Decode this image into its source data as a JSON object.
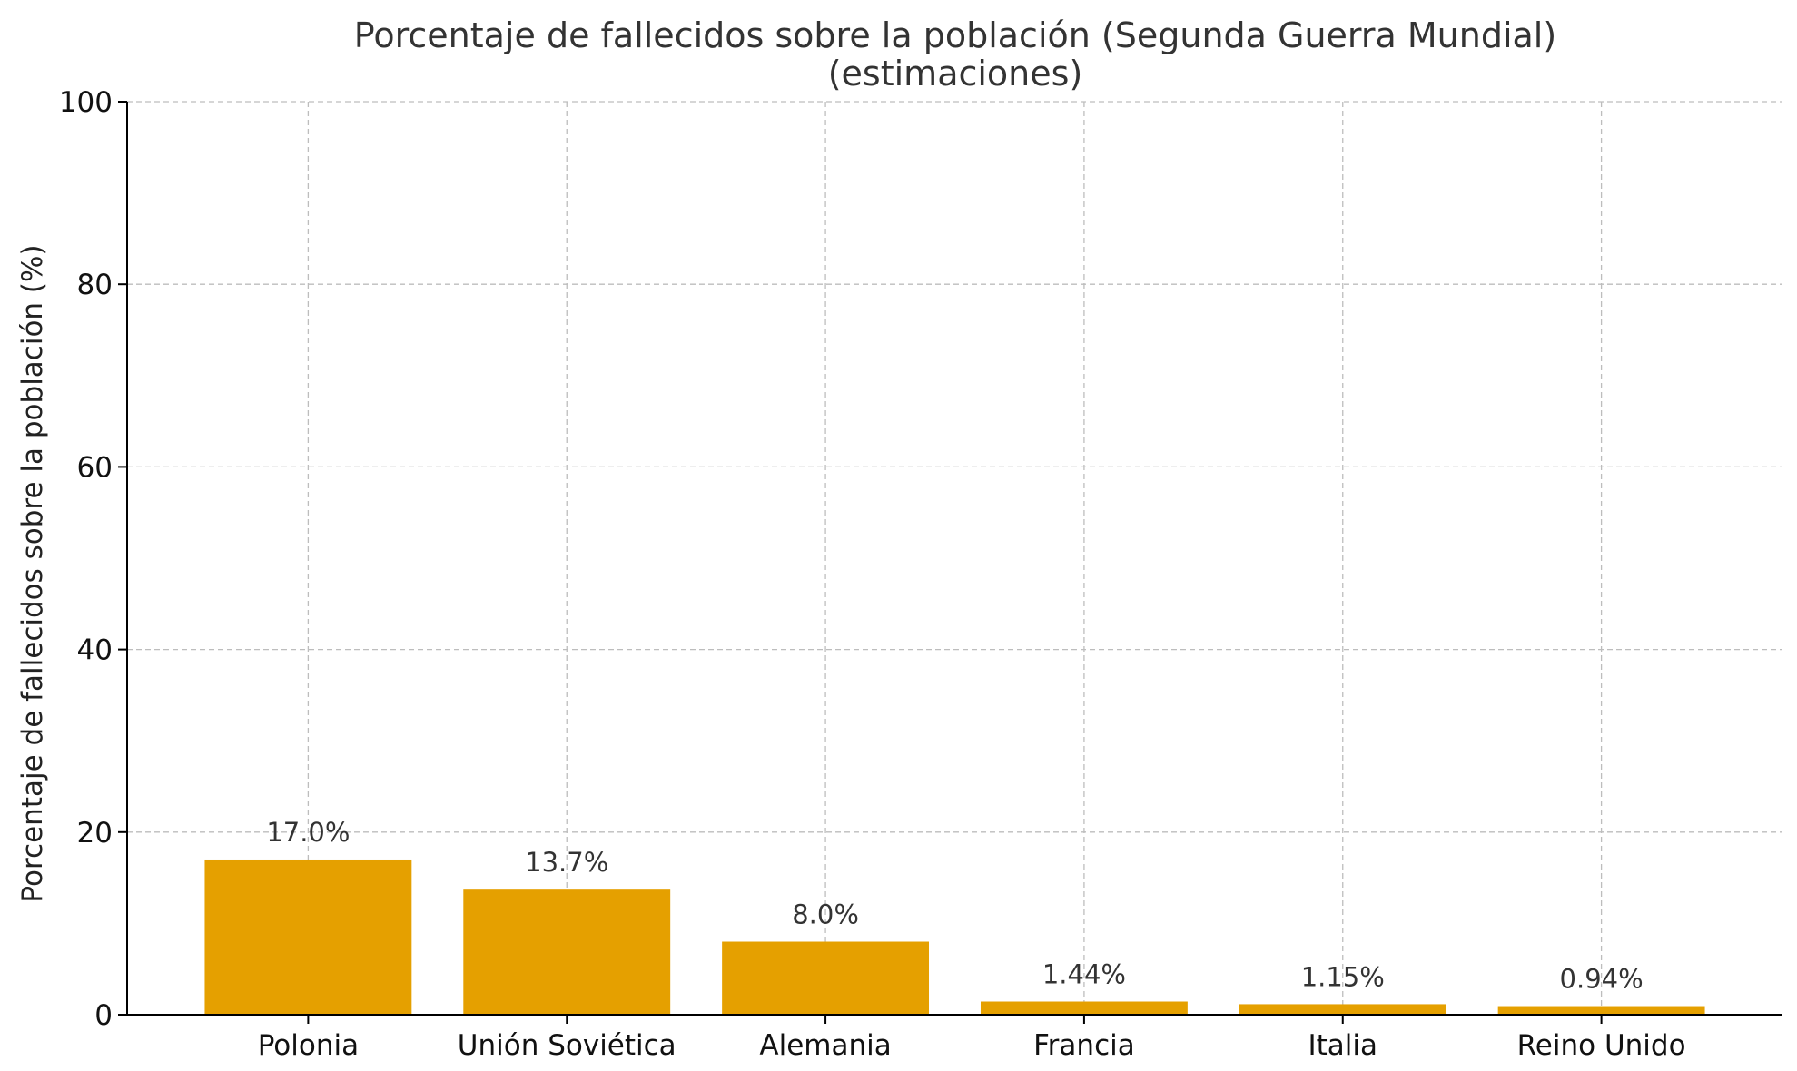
{
  "chart_data": {
    "type": "bar",
    "title": "Porcentaje de fallecidos sobre la población (Segunda Guerra Mundial)",
    "subtitle": "(estimaciones)",
    "xlabel": "",
    "ylabel": "Porcentaje de fallecidos sobre la población (%)",
    "categories": [
      "Polonia",
      "Unión Soviética",
      "Alemania",
      "Francia",
      "Italia",
      "Reino Unido"
    ],
    "values": [
      17.0,
      13.7,
      8.0,
      1.44,
      1.15,
      0.94
    ],
    "data_labels": [
      "17.0%",
      "13.7%",
      "8.0%",
      "1.44%",
      "1.15%",
      "0.94%"
    ],
    "ylim": [
      0,
      100
    ],
    "yticks": [
      0,
      20,
      40,
      60,
      80,
      100
    ],
    "grid": true,
    "bar_color": "#E5A000"
  }
}
